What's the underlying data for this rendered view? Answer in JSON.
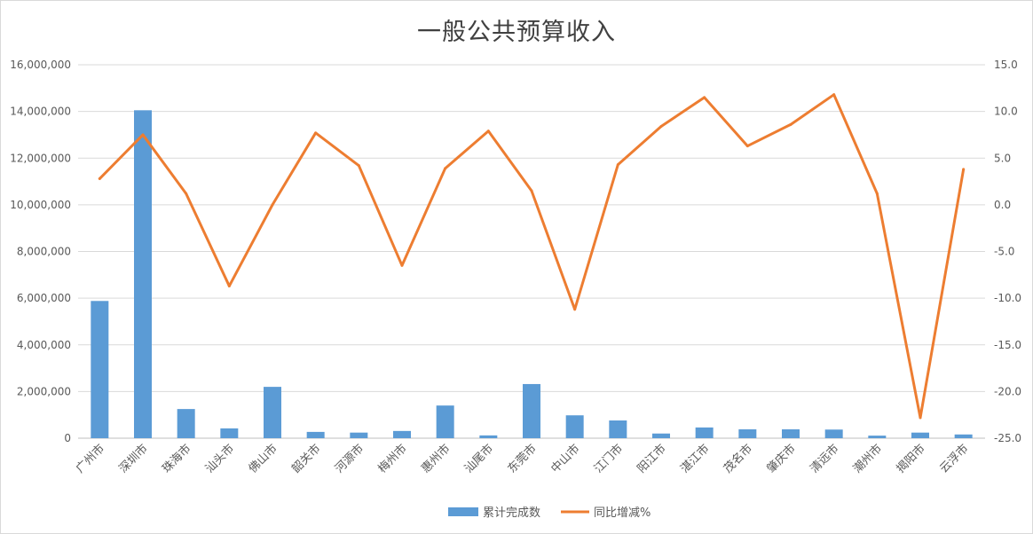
{
  "chart_data": {
    "type": "bar",
    "title": "一般公共预算收入",
    "categories": [
      "广州市",
      "深圳市",
      "珠海市",
      "汕头市",
      "佛山市",
      "韶关市",
      "河源市",
      "梅州市",
      "惠州市",
      "汕尾市",
      "东莞市",
      "中山市",
      "江门市",
      "阳江市",
      "湛江市",
      "茂名市",
      "肇庆市",
      "清远市",
      "潮州市",
      "揭阳市",
      "云浮市"
    ],
    "series": [
      {
        "name": "累计完成数",
        "type": "bar",
        "axis": "left",
        "color": "#5b9bd5",
        "values": [
          5880000,
          14050000,
          1250000,
          420000,
          2200000,
          270000,
          240000,
          310000,
          1400000,
          120000,
          2320000,
          980000,
          760000,
          200000,
          460000,
          380000,
          380000,
          370000,
          110000,
          240000,
          160000
        ]
      },
      {
        "name": "同比增减%",
        "type": "line",
        "axis": "right",
        "color": "#ed7d31",
        "values": [
          2.8,
          7.5,
          1.2,
          -8.7,
          0.0,
          7.7,
          4.2,
          -6.5,
          3.9,
          7.9,
          1.5,
          -11.2,
          4.3,
          8.4,
          11.5,
          6.3,
          8.6,
          11.8,
          1.2,
          -22.8,
          3.8
        ]
      }
    ],
    "y_left": {
      "min": 0,
      "max": 16000000,
      "step": 2000000,
      "tick_labels": [
        "0",
        "2,000,000",
        "4,000,000",
        "6,000,000",
        "8,000,000",
        "10,000,000",
        "12,000,000",
        "14,000,000",
        "16,000,000"
      ]
    },
    "y_right": {
      "min": -25,
      "max": 15,
      "step": 5,
      "tick_labels": [
        "-25.0",
        "-20.0",
        "-15.0",
        "-10.0",
        "-5.0",
        "0.0",
        "5.0",
        "10.0",
        "15.0"
      ]
    },
    "grid": true,
    "legend_position": "bottom"
  }
}
